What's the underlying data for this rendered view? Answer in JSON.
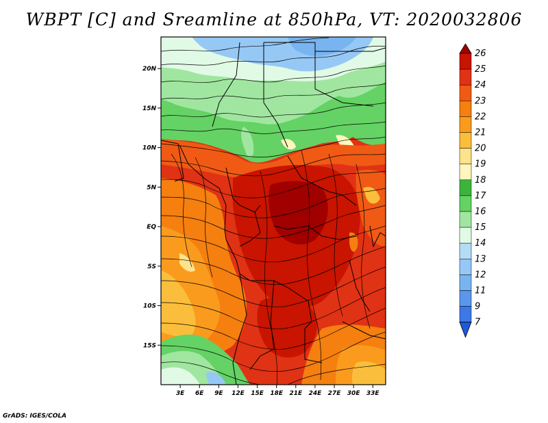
{
  "title": "WBPT [C] and Sreamline at 850hPa, VT: 2020032806",
  "credit": "GrADS: IGES/COLA",
  "map": {
    "lon_range": [
      0,
      35
    ],
    "lat_range": [
      -20,
      24
    ],
    "lat_ticks": [
      {
        "value": 20,
        "label": "20N"
      },
      {
        "value": 15,
        "label": "15N"
      },
      {
        "value": 10,
        "label": "10N"
      },
      {
        "value": 5,
        "label": "5N"
      },
      {
        "value": 0,
        "label": "EQ"
      },
      {
        "value": -5,
        "label": "5S"
      },
      {
        "value": -10,
        "label": "10S"
      },
      {
        "value": -15,
        "label": "15S"
      }
    ],
    "lon_ticks": [
      {
        "value": 3,
        "label": "3E"
      },
      {
        "value": 6,
        "label": "6E"
      },
      {
        "value": 9,
        "label": "9E"
      },
      {
        "value": 12,
        "label": "12E"
      },
      {
        "value": 15,
        "label": "15E"
      },
      {
        "value": 18,
        "label": "18E"
      },
      {
        "value": 21,
        "label": "21E"
      },
      {
        "value": 24,
        "label": "24E"
      },
      {
        "value": 27,
        "label": "27E"
      },
      {
        "value": 30,
        "label": "30E"
      },
      {
        "value": 33,
        "label": "33E"
      }
    ]
  },
  "colorbar": {
    "levels": [
      {
        "label": "26",
        "color": "#a00000"
      },
      {
        "label": "25",
        "color": "#c81400"
      },
      {
        "label": "24",
        "color": "#e03214"
      },
      {
        "label": "23",
        "color": "#f05a14"
      },
      {
        "label": "22",
        "color": "#f57f0f"
      },
      {
        "label": "21",
        "color": "#fa9b1e"
      },
      {
        "label": "20",
        "color": "#fabe3c"
      },
      {
        "label": "19",
        "color": "#fde38c"
      },
      {
        "label": "18",
        "color": "#fff5be"
      },
      {
        "label": "17",
        "color": "#3cb43c"
      },
      {
        "label": "16",
        "color": "#64d264"
      },
      {
        "label": "15",
        "color": "#a0e6a0"
      },
      {
        "label": "14",
        "color": "#e1fae6"
      },
      {
        "label": "13",
        "color": "#b4dcf5"
      },
      {
        "label": "12",
        "color": "#96c8f5"
      },
      {
        "label": "11",
        "color": "#78b4f0"
      },
      {
        "label": "9",
        "color": "#5a96eb"
      },
      {
        "label": "7",
        "color": "#3c78e6"
      }
    ],
    "bottom_color": "#1e5adc"
  }
}
